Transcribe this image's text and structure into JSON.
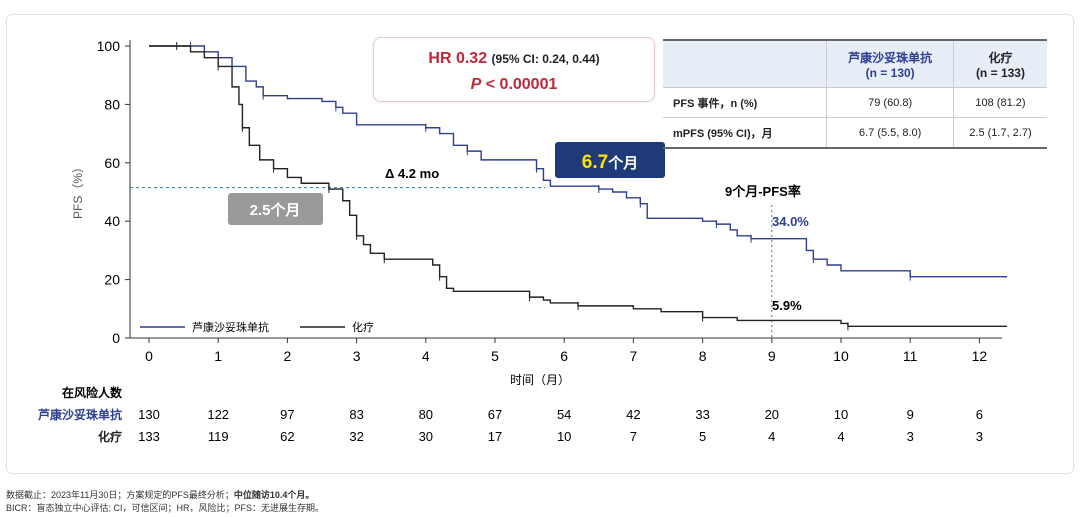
{
  "hr": {
    "line1": "HR 0.32",
    "line1_ci": "(95% CI: 0.24, 0.44)",
    "p_label": "P",
    "p_value": "< 0.00001"
  },
  "table": {
    "headers": [
      "",
      "芦康沙妥珠单抗\n(n = 130)",
      "化疗\n(n = 133)"
    ],
    "h1a": "芦康沙妥珠单抗",
    "h1b": "(n = 130)",
    "h2a": "化疗",
    "h2b": "(n = 133)",
    "rows": [
      [
        "PFS 事件，n (%)",
        "79 (60.8)",
        "108 (81.2)"
      ],
      [
        "mPFS (95% CI)，月",
        "6.7 (5.5, 8.0)",
        "2.5 (1.7, 2.7)"
      ]
    ]
  },
  "annotations": {
    "delta": "Δ 4.2 mo",
    "median_drug": "6.7",
    "median_drug_unit": "个月",
    "median_chemo": "2.5个月",
    "pfs9_title": "9个月-PFS率",
    "pfs9_drug": "34.0%",
    "pfs9_chemo": "5.9%"
  },
  "risk": {
    "title": "在风险人数",
    "rows": [
      {
        "label": "芦康沙妥珠单抗",
        "values": [
          130,
          122,
          97,
          83,
          80,
          67,
          54,
          42,
          33,
          20,
          10,
          9,
          6
        ]
      },
      {
        "label": "化疗",
        "values": [
          133,
          119,
          62,
          32,
          30,
          17,
          10,
          7,
          5,
          4,
          4,
          3,
          3
        ]
      }
    ]
  },
  "footnotes": {
    "line1": "数据截止：2023年11月30日；方案规定的PFS最终分析；",
    "line1_bold": "中位随访10.4个月。",
    "line2": "BICR：盲态独立中心评估; CI，可信区间；HR，风险比；PFS：无进展生存期。"
  },
  "chart_data": {
    "type": "line",
    "step": true,
    "xlabel": "时间（月）",
    "ylabel": "PFS（%）",
    "xlim": [
      0,
      12.4
    ],
    "ylim": [
      0,
      100
    ],
    "xticks": [
      0,
      1,
      2,
      3,
      4,
      5,
      6,
      7,
      8,
      9,
      10,
      11,
      12
    ],
    "yticks": [
      0,
      20,
      40,
      60,
      80,
      100
    ],
    "legend_placement": "bottom-left",
    "reference_y": 51.5,
    "reference_x": 9,
    "series": [
      {
        "name": "芦康沙妥珠单抗",
        "color": "#2e3f8f",
        "points": [
          [
            0,
            100
          ],
          [
            0.6,
            100
          ],
          [
            0.8,
            98
          ],
          [
            1,
            96
          ],
          [
            1.2,
            93
          ],
          [
            1.4,
            88
          ],
          [
            1.55,
            86
          ],
          [
            1.65,
            83
          ],
          [
            2,
            82
          ],
          [
            2.5,
            81
          ],
          [
            2.7,
            79
          ],
          [
            2.8,
            77
          ],
          [
            3,
            73
          ],
          [
            4,
            72
          ],
          [
            4.2,
            70
          ],
          [
            4.4,
            66
          ],
          [
            4.6,
            64
          ],
          [
            4.8,
            61
          ],
          [
            5.5,
            61
          ],
          [
            5.6,
            58
          ],
          [
            5.7,
            54
          ],
          [
            5.8,
            52
          ],
          [
            6.5,
            51
          ],
          [
            6.7,
            50
          ],
          [
            6.9,
            48
          ],
          [
            7.1,
            46
          ],
          [
            7.2,
            41
          ],
          [
            8,
            40
          ],
          [
            8.2,
            39
          ],
          [
            8.4,
            37
          ],
          [
            8.5,
            35
          ],
          [
            8.7,
            34
          ],
          [
            9.3,
            34
          ],
          [
            9.5,
            30
          ],
          [
            9.6,
            27
          ],
          [
            9.8,
            25
          ],
          [
            10,
            23
          ],
          [
            11,
            21
          ],
          [
            12.4,
            21
          ]
        ]
      },
      {
        "name": "化疗",
        "color": "#222222",
        "points": [
          [
            0,
            100
          ],
          [
            0.4,
            100
          ],
          [
            0.6,
            98
          ],
          [
            0.8,
            96
          ],
          [
            1,
            93
          ],
          [
            1.2,
            86
          ],
          [
            1.3,
            80
          ],
          [
            1.35,
            72
          ],
          [
            1.45,
            66
          ],
          [
            1.6,
            61
          ],
          [
            1.8,
            58
          ],
          [
            2,
            55
          ],
          [
            2.2,
            53
          ],
          [
            2.6,
            51
          ],
          [
            2.8,
            47
          ],
          [
            2.9,
            42
          ],
          [
            3,
            35
          ],
          [
            3.1,
            32
          ],
          [
            3.2,
            29
          ],
          [
            3.4,
            27
          ],
          [
            4,
            27
          ],
          [
            4.1,
            25
          ],
          [
            4.2,
            21
          ],
          [
            4.3,
            17
          ],
          [
            4.4,
            16
          ],
          [
            5.5,
            14
          ],
          [
            5.7,
            13
          ],
          [
            5.8,
            12
          ],
          [
            6.2,
            11
          ],
          [
            7,
            10
          ],
          [
            7.4,
            9
          ],
          [
            8,
            7
          ],
          [
            8.5,
            6
          ],
          [
            10,
            5
          ],
          [
            10.1,
            4
          ],
          [
            12.4,
            4
          ]
        ]
      }
    ]
  }
}
